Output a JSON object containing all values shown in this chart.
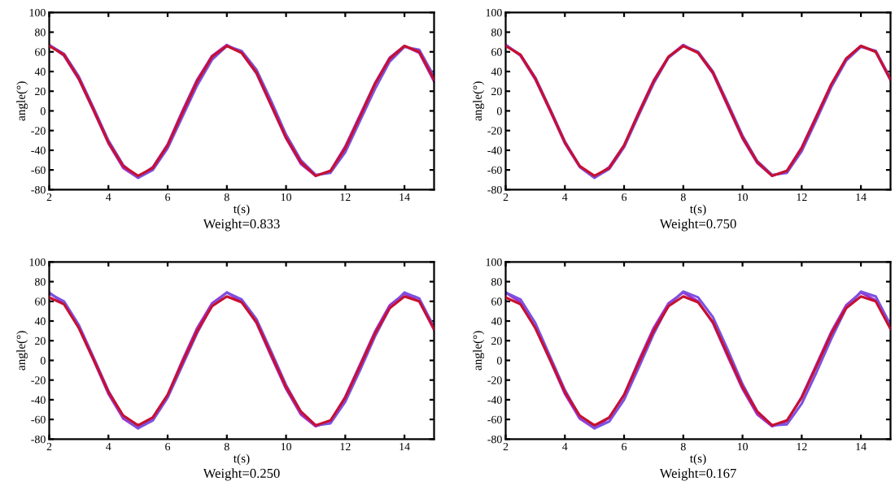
{
  "chart_data": [
    {
      "type": "line",
      "xlabel": "t(s)",
      "ylabel": "angle(°)",
      "annotations": [
        "Weight=0.833"
      ],
      "x": [
        2,
        2.5,
        3,
        3.5,
        4,
        4.5,
        5,
        5.5,
        6,
        6.5,
        7,
        7.5,
        8,
        8.5,
        9,
        9.5,
        10,
        10.5,
        11,
        11.5,
        12,
        12.5,
        13,
        13.5,
        14,
        14.5,
        15
      ],
      "xlim": [
        2,
        15
      ],
      "xticks": [
        2,
        4,
        6,
        8,
        10,
        12,
        14
      ],
      "ylim": [
        -80,
        100
      ],
      "yticks": [
        -80,
        -60,
        -40,
        -20,
        0,
        20,
        40,
        60,
        80,
        100
      ],
      "grid": false,
      "legend": false,
      "series": [
        {
          "color": "#c8102e",
          "values": [
            66,
            57,
            33,
            1,
            -32,
            -56,
            -66,
            -58,
            -35,
            -2,
            30,
            55,
            66,
            59,
            39,
            6,
            -27,
            -52,
            -66,
            -61,
            -38,
            -6,
            27,
            53,
            66,
            60,
            32
          ]
        },
        {
          "color": "#7b52e0",
          "values": [
            67,
            58,
            35,
            3,
            -30,
            -55,
            -68,
            -60,
            -38,
            -6,
            26,
            52,
            66,
            61,
            42,
            10,
            -24,
            -50,
            -65,
            -63,
            -42,
            -10,
            22,
            50,
            65,
            62,
            35
          ]
        },
        {
          "color": "#a030c8",
          "values": [
            67,
            56,
            32,
            0,
            -33,
            -58,
            -68,
            -57,
            -34,
            0,
            32,
            56,
            67,
            59,
            38,
            5,
            -28,
            -54,
            -66,
            -61,
            -36,
            -4,
            28,
            54,
            66,
            59,
            30
          ]
        }
      ]
    },
    {
      "type": "line",
      "xlabel": "t(s)",
      "ylabel": "angle(°)",
      "annotations": [
        "Weight=0.750"
      ],
      "x": [
        2,
        2.5,
        3,
        3.5,
        4,
        4.5,
        5,
        5.5,
        6,
        6.5,
        7,
        7.5,
        8,
        8.5,
        9,
        9.5,
        10,
        10.5,
        11,
        11.5,
        12,
        12.5,
        13,
        13.5,
        14,
        14.5,
        15
      ],
      "xlim": [
        2,
        15
      ],
      "xticks": [
        2,
        4,
        6,
        8,
        10,
        12,
        14
      ],
      "ylim": [
        -80,
        100
      ],
      "yticks": [
        -80,
        -60,
        -40,
        -20,
        0,
        20,
        40,
        60,
        80,
        100
      ],
      "grid": false,
      "legend": false,
      "series": [
        {
          "color": "#c8102e",
          "values": [
            66,
            57,
            33,
            1,
            -32,
            -56,
            -66,
            -58,
            -35,
            -2,
            30,
            55,
            66,
            59,
            39,
            6,
            -27,
            -52,
            -66,
            -61,
            -38,
            -6,
            27,
            53,
            66,
            60,
            32
          ]
        },
        {
          "color": "#7b52e0",
          "values": [
            67,
            57,
            34,
            2,
            -31,
            -56,
            -68,
            -59,
            -37,
            -4,
            28,
            54,
            66,
            60,
            40,
            8,
            -25,
            -51,
            -65,
            -63,
            -41,
            -9,
            24,
            51,
            65,
            61,
            33
          ]
        },
        {
          "color": "#a030c8",
          "values": [
            67,
            56,
            32,
            0,
            -33,
            -57,
            -68,
            -57,
            -35,
            -1,
            31,
            55,
            67,
            59,
            38,
            5,
            -28,
            -53,
            -66,
            -61,
            -37,
            -5,
            27,
            53,
            66,
            60,
            31
          ]
        }
      ]
    },
    {
      "type": "line",
      "xlabel": "t(s)",
      "ylabel": "angle(°)",
      "annotations": [
        "Weight=0.250"
      ],
      "x": [
        2,
        2.5,
        3,
        3.5,
        4,
        4.5,
        5,
        5.5,
        6,
        6.5,
        7,
        7.5,
        8,
        8.5,
        9,
        9.5,
        10,
        10.5,
        11,
        11.5,
        12,
        12.5,
        13,
        13.5,
        14,
        14.5,
        15
      ],
      "xlim": [
        2,
        15
      ],
      "xticks": [
        2,
        4,
        6,
        8,
        10,
        12,
        14
      ],
      "ylim": [
        -80,
        100
      ],
      "yticks": [
        -80,
        -60,
        -40,
        -20,
        0,
        20,
        40,
        60,
        80,
        100
      ],
      "grid": false,
      "legend": false,
      "series": [
        {
          "color": "#c8102e",
          "values": [
            64,
            57,
            33,
            1,
            -32,
            -56,
            -66,
            -58,
            -35,
            -2,
            30,
            55,
            65,
            59,
            39,
            6,
            -27,
            -52,
            -66,
            -61,
            -38,
            -6,
            27,
            53,
            65,
            60,
            32
          ]
        },
        {
          "color": "#7b52e0",
          "values": [
            68,
            60,
            36,
            3,
            -31,
            -57,
            -69,
            -61,
            -38,
            -5,
            28,
            56,
            69,
            62,
            42,
            9,
            -25,
            -52,
            -66,
            -64,
            -42,
            -10,
            24,
            53,
            69,
            63,
            34
          ]
        },
        {
          "color": "#a030c8",
          "values": [
            69,
            58,
            33,
            0,
            -34,
            -59,
            -69,
            -58,
            -35,
            0,
            33,
            58,
            69,
            60,
            38,
            4,
            -29,
            -55,
            -67,
            -62,
            -37,
            -4,
            29,
            56,
            68,
            60,
            31
          ]
        }
      ]
    },
    {
      "type": "line",
      "xlabel": "t(s)",
      "ylabel": "angle(°)",
      "annotations": [
        "Weight=0.167"
      ],
      "x": [
        2,
        2.5,
        3,
        3.5,
        4,
        4.5,
        5,
        5.5,
        6,
        6.5,
        7,
        7.5,
        8,
        8.5,
        9,
        9.5,
        10,
        10.5,
        11,
        11.5,
        12,
        12.5,
        13,
        13.5,
        14,
        14.5,
        15
      ],
      "xlim": [
        2,
        15
      ],
      "xticks": [
        2,
        4,
        6,
        8,
        10,
        12,
        14
      ],
      "ylim": [
        -80,
        100
      ],
      "yticks": [
        -80,
        -60,
        -40,
        -20,
        0,
        20,
        40,
        60,
        80,
        100
      ],
      "grid": false,
      "legend": false,
      "series": [
        {
          "color": "#c8102e",
          "values": [
            64,
            57,
            33,
            1,
            -32,
            -56,
            -66,
            -58,
            -35,
            -2,
            30,
            55,
            65,
            59,
            39,
            6,
            -27,
            -52,
            -66,
            -61,
            -38,
            -6,
            27,
            53,
            65,
            60,
            32
          ]
        },
        {
          "color": "#7b52e0",
          "values": [
            69,
            62,
            38,
            4,
            -30,
            -57,
            -69,
            -62,
            -40,
            -7,
            27,
            56,
            70,
            64,
            44,
            11,
            -24,
            -52,
            -66,
            -65,
            -44,
            -12,
            22,
            53,
            70,
            65,
            36
          ]
        },
        {
          "color": "#a030c8",
          "values": [
            69,
            59,
            33,
            0,
            -34,
            -59,
            -69,
            -58,
            -35,
            0,
            33,
            58,
            69,
            60,
            38,
            4,
            -29,
            -55,
            -67,
            -62,
            -37,
            -4,
            29,
            56,
            69,
            61,
            32
          ]
        }
      ]
    }
  ]
}
